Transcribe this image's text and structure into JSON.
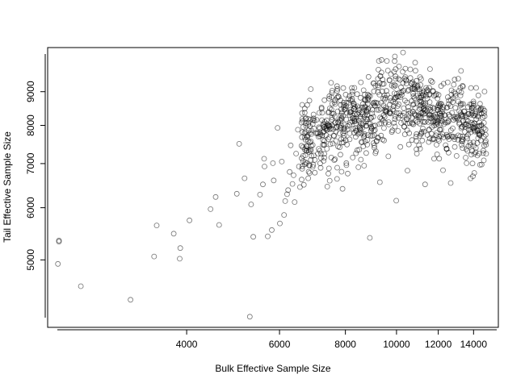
{
  "chart_data": {
    "type": "scatter",
    "xlabel": "Bulk Effective Sample Size",
    "ylabel": "Tail Effective Sample Size",
    "x_scale": "log",
    "y_scale": "log",
    "xlim": [
      2180,
      15600
    ],
    "ylim": [
      3950,
      10500
    ],
    "x_ticks": [
      4000,
      6000,
      8000,
      10000,
      12000,
      14000
    ],
    "x_tick_labels": [
      "4000",
      "6000",
      "8000",
      "10000",
      "12000",
      "14000"
    ],
    "y_ticks": [
      5000,
      6000,
      7000,
      8000,
      9000
    ],
    "y_tick_labels": [
      "5000",
      "6000",
      "7000",
      "8000",
      "9000"
    ],
    "grid": false,
    "legend": "none",
    "point_style": "open-circle",
    "cluster_note": "dense cloud of ~1000 open circles between x 6500-14800, y 6500-10300",
    "points": [
      [
        2290,
        5350
      ],
      [
        2290,
        5330
      ],
      [
        2280,
        4930
      ],
      [
        2520,
        4560
      ],
      [
        3130,
        4350
      ],
      [
        3470,
        5060
      ],
      [
        3510,
        5640
      ],
      [
        3780,
        5480
      ],
      [
        3880,
        5020
      ],
      [
        3890,
        5210
      ],
      [
        4050,
        5740
      ],
      [
        4440,
        5970
      ],
      [
        4540,
        6230
      ],
      [
        4610,
        5650
      ],
      [
        4980,
        6300
      ],
      [
        5030,
        7500
      ],
      [
        5150,
        6650
      ],
      [
        5270,
        4100
      ],
      [
        5300,
        6070
      ],
      [
        5350,
        5420
      ],
      [
        5510,
        6280
      ],
      [
        5580,
        6510
      ],
      [
        5610,
        7120
      ],
      [
        5620,
        6930
      ],
      [
        5700,
        5430
      ],
      [
        5800,
        5550
      ],
      [
        5830,
        7010
      ],
      [
        5850,
        6600
      ],
      [
        5950,
        7930
      ],
      [
        6010,
        5680
      ],
      [
        6060,
        7050
      ],
      [
        6120,
        5850
      ],
      [
        6150,
        6140
      ],
      [
        6200,
        6290
      ],
      [
        6230,
        6380
      ],
      [
        6270,
        6800
      ],
      [
        6300,
        7460
      ],
      [
        6350,
        6520
      ],
      [
        6380,
        6720
      ],
      [
        6410,
        6120
      ],
      [
        6450,
        7250
      ],
      [
        6500,
        7880
      ],
      [
        6530,
        6930
      ],
      [
        6560,
        6450
      ],
      [
        6610,
        6620
      ],
      [
        6650,
        7060
      ],
      [
        6720,
        7610
      ],
      [
        6800,
        6650
      ],
      [
        6850,
        7980
      ],
      [
        6900,
        7190
      ],
      [
        6960,
        8200
      ],
      [
        7000,
        6780
      ],
      [
        7100,
        7780
      ],
      [
        7150,
        7320
      ],
      [
        7210,
        8480
      ],
      [
        7300,
        7580
      ],
      [
        7390,
        6460
      ],
      [
        7450,
        8000
      ],
      [
        7520,
        7150
      ],
      [
        7600,
        7720
      ],
      [
        7650,
        8620
      ],
      [
        7720,
        6900
      ],
      [
        7800,
        7410
      ],
      [
        7850,
        8280
      ],
      [
        7900,
        6410
      ],
      [
        7960,
        7930
      ],
      [
        8010,
        8910
      ],
      [
        8080,
        6760
      ],
      [
        8150,
        7620
      ],
      [
        8200,
        8380
      ],
      [
        8260,
        7150
      ],
      [
        8320,
        9120
      ],
      [
        8380,
        7860
      ],
      [
        8440,
        8550
      ],
      [
        8500,
        7350
      ],
      [
        8560,
        9300
      ],
      [
        8620,
        8010
      ],
      [
        8680,
        6950
      ],
      [
        8740,
        8730
      ],
      [
        8800,
        7480
      ],
      [
        8850,
        9480
      ],
      [
        8900,
        5400
      ],
      [
        8950,
        8210
      ],
      [
        9000,
        7710
      ],
      [
        9060,
        9010
      ],
      [
        9120,
        7260
      ],
      [
        9180,
        8450
      ],
      [
        9240,
        9720
      ],
      [
        9300,
        6560
      ],
      [
        9350,
        8060
      ],
      [
        9410,
        9390
      ],
      [
        9470,
        7590
      ],
      [
        9530,
        8810
      ],
      [
        9590,
        10020
      ],
      [
        9650,
        7180
      ],
      [
        9700,
        8350
      ],
      [
        9760,
        9570
      ],
      [
        9820,
        7860
      ],
      [
        9880,
        9160
      ],
      [
        9930,
        10180
      ],
      [
        9990,
        6150
      ],
      [
        10050,
        8560
      ],
      [
        10110,
        9830
      ],
      [
        10170,
        7420
      ],
      [
        10230,
        8900
      ],
      [
        10290,
        10320
      ],
      [
        10350,
        7960
      ],
      [
        10420,
        9380
      ],
      [
        10490,
        6830
      ],
      [
        10550,
        8420
      ],
      [
        10620,
        9730
      ],
      [
        10700,
        7600
      ],
      [
        10770,
        8860
      ],
      [
        10850,
        9960
      ],
      [
        10930,
        7250
      ],
      [
        11000,
        8290
      ],
      [
        11080,
        9470
      ],
      [
        11160,
        7820
      ],
      [
        11240,
        8650
      ],
      [
        11330,
        6510
      ],
      [
        11420,
        9050
      ],
      [
        11510,
        7550
      ],
      [
        11600,
        8450
      ],
      [
        11690,
        9310
      ],
      [
        11780,
        7120
      ],
      [
        11870,
        8070
      ],
      [
        11960,
        8790
      ],
      [
        12050,
        7690
      ],
      [
        12150,
        9180
      ],
      [
        12250,
        6840
      ],
      [
        12350,
        8290
      ],
      [
        12450,
        7380
      ],
      [
        12560,
        8620
      ],
      [
        12670,
        6540
      ],
      [
        12780,
        7920
      ],
      [
        12890,
        9390
      ],
      [
        13000,
        7190
      ],
      [
        13110,
        8150
      ],
      [
        13220,
        8880
      ],
      [
        13340,
        7560
      ],
      [
        13460,
        8400
      ],
      [
        13580,
        7010
      ],
      [
        13700,
        7880
      ],
      [
        13820,
        6650
      ],
      [
        13940,
        8360
      ],
      [
        14050,
        7240
      ],
      [
        14160,
        9120
      ],
      [
        14280,
        7650
      ],
      [
        14400,
        6970
      ],
      [
        14520,
        7780
      ],
      [
        14640,
        7080
      ],
      [
        14760,
        7740
      ]
    ]
  }
}
